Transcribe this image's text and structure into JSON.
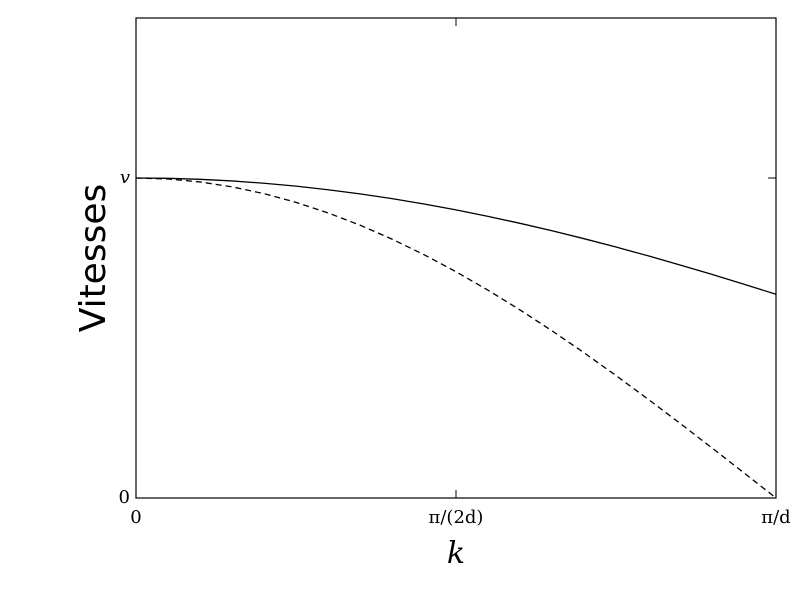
{
  "chart_data": {
    "type": "line",
    "xlabel": "k",
    "ylabel": "Vitesses",
    "x": [
      0,
      0.05,
      0.1,
      0.15,
      0.2,
      0.25,
      0.3,
      0.35,
      0.4,
      0.45,
      0.5,
      0.55,
      0.6,
      0.65,
      0.7,
      0.75,
      0.8,
      0.85,
      0.9,
      0.95,
      1
    ],
    "series": [
      {
        "color": "#000000",
        "linestyle": "solid",
        "values": [
          1,
          0.99897,
          0.99589,
          0.99077,
          0.98363,
          0.9745,
          0.9634,
          0.95038,
          0.93549,
          0.91878,
          0.90032,
          0.88017,
          0.8584,
          0.83508,
          0.81034,
          0.78421,
          0.75683,
          0.72826,
          0.69865,
          0.66806,
          0.63662
        ]
      },
      {
        "color": "#000000",
        "linestyle": "dashed",
        "values": [
          1,
          0.99692,
          0.98769,
          0.97237,
          0.95106,
          0.92388,
          0.89101,
          0.85264,
          0.80902,
          0.76041,
          0.70711,
          0.64945,
          0.58779,
          0.5225,
          0.45399,
          0.38268,
          0.30902,
          0.23345,
          0.15643,
          0.07846,
          0
        ]
      }
    ],
    "xlim": [
      0,
      1
    ],
    "xticks": [
      0,
      {
        "value": 0.5,
        "label": "π/(2d)"
      },
      {
        "value": 1,
        "label": "π/d"
      }
    ],
    "ylim": [
      0,
      1.5
    ],
    "yticks": [
      0,
      {
        "value": 1,
        "label": "v"
      }
    ],
    "grid": false
  }
}
